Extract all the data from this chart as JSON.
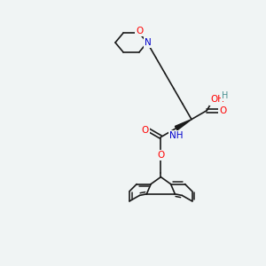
{
  "bg_color": "#f0f4f4",
  "bond_color": "#1a1a1a",
  "atom_colors": {
    "O": "#ff0000",
    "N": "#0000cc",
    "H": "#4a9090",
    "C": "#1a1a1a"
  },
  "font_size": 7.5,
  "bond_width": 1.2
}
